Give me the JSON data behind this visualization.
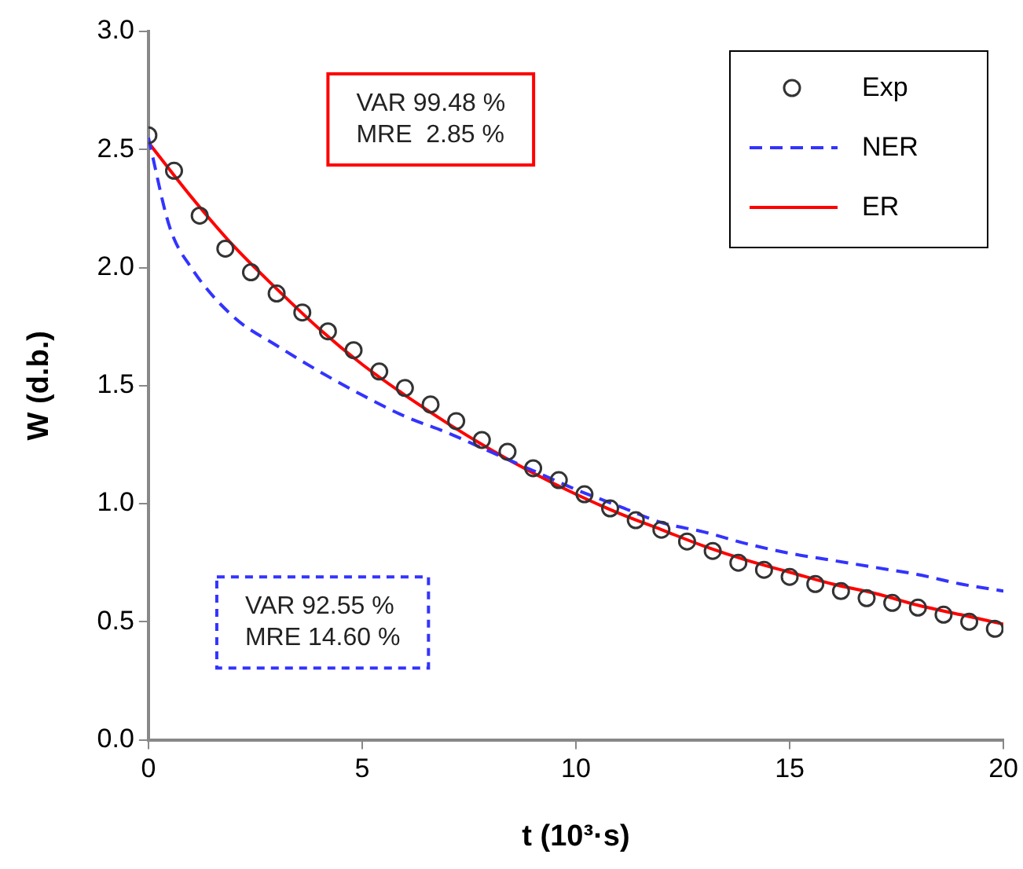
{
  "chart_data": {
    "type": "line",
    "xlabel": "t (10³·s)",
    "ylabel": "W (d.b.)",
    "xlim": [
      0,
      20
    ],
    "xticks": [
      0,
      5,
      10,
      15,
      20
    ],
    "ylim": [
      0,
      3
    ],
    "yticks": [
      {
        "value": 0,
        "label": "0.0"
      },
      {
        "value": 0.5,
        "label": "0.5"
      },
      {
        "value": 1,
        "label": "1.0"
      },
      {
        "value": 1.5,
        "label": "1.5"
      },
      {
        "value": 2,
        "label": "2.0"
      },
      {
        "value": 2.5,
        "label": "2.5"
      },
      {
        "value": 3,
        "label": "3.0"
      }
    ],
    "grid": false,
    "legend": "top right",
    "annotations": [
      "VAR 99.48 %\nMRE  2.85 %",
      "VAR 92.55 %\nMRE 14.60 %"
    ],
    "series": [
      {
        "name": "Exp",
        "type": "scatter",
        "marker": "circle",
        "color": "#333333",
        "x": [
          0,
          0.6,
          1.2,
          1.8,
          2.4,
          3,
          3.6,
          4.2,
          4.8,
          5.4,
          6,
          6.6,
          7.2,
          7.8,
          8.4,
          9,
          9.6,
          10.2,
          10.8,
          11.4,
          12,
          12.6,
          13.2,
          13.8,
          14.4,
          15,
          15.6,
          16.2,
          16.8,
          17.4,
          18,
          18.6,
          19.2,
          19.8
        ],
        "values": [
          2.56,
          2.41,
          2.22,
          2.08,
          1.98,
          1.89,
          1.81,
          1.73,
          1.65,
          1.56,
          1.49,
          1.42,
          1.35,
          1.27,
          1.22,
          1.15,
          1.1,
          1.04,
          0.98,
          0.93,
          0.89,
          0.84,
          0.8,
          0.75,
          0.72,
          0.69,
          0.66,
          0.63,
          0.6,
          0.58,
          0.56,
          0.53,
          0.5,
          0.47
        ]
      },
      {
        "name": "NER",
        "type": "line",
        "line_style": "dashed",
        "color": "#3333ff",
        "x": [
          0,
          0.5,
          1,
          2,
          3,
          4,
          5,
          6,
          7,
          8,
          9,
          10,
          11,
          12,
          13,
          14,
          15,
          16,
          17,
          18,
          19,
          20
        ],
        "values": [
          2.55,
          2.17,
          2.0,
          1.79,
          1.67,
          1.56,
          1.46,
          1.37,
          1.3,
          1.22,
          1.14,
          1.06,
          0.99,
          0.92,
          0.88,
          0.83,
          0.79,
          0.76,
          0.73,
          0.7,
          0.66,
          0.63
        ]
      },
      {
        "name": "ER",
        "type": "line",
        "line_style": "solid",
        "color": "#ff0000",
        "x": [
          0,
          1,
          2,
          3,
          4,
          5,
          6,
          7,
          8,
          9,
          10,
          11,
          12,
          13,
          14,
          15,
          16,
          17,
          18,
          19,
          20
        ],
        "values": [
          2.53,
          2.3,
          2.09,
          1.91,
          1.74,
          1.59,
          1.46,
          1.34,
          1.23,
          1.13,
          1.04,
          0.96,
          0.89,
          0.82,
          0.76,
          0.71,
          0.66,
          0.62,
          0.57,
          0.53,
          0.49
        ]
      }
    ]
  }
}
